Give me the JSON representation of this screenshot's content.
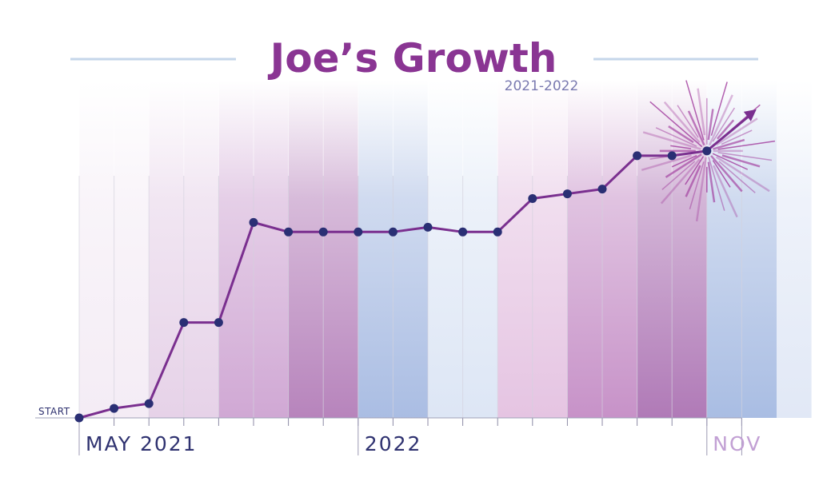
{
  "chart_data": {
    "type": "line",
    "title": "Joe’s Growth",
    "subtitle": "2021-2022",
    "start_label": "START",
    "x_labels": [
      {
        "text": "MAY 2021",
        "month_index": 0
      },
      {
        "text": "2022",
        "month_index": 8
      },
      {
        "text": "NOV",
        "month_index": 18
      }
    ],
    "x": [
      0,
      1,
      2,
      3,
      4,
      5,
      6,
      7,
      8,
      9,
      10,
      11,
      12,
      13,
      14,
      15,
      16,
      17,
      18
    ],
    "values": [
      0,
      2,
      3,
      20,
      20,
      41,
      39,
      39,
      39,
      39,
      40,
      39,
      39,
      46,
      47,
      48,
      55,
      55,
      56
    ],
    "ylim": [
      0,
      60
    ],
    "xlim": [
      0,
      19
    ],
    "trend_arrow": true,
    "burst_highlight": true,
    "band_colors": [
      "#f4ecf5",
      "#e6d2e8",
      "#d0a8d4",
      "#b784bc",
      "#aabde3",
      "#dde6f5",
      "#e5c4e2",
      "#c792c8",
      "#b07ab7",
      "#a9bde3",
      "#e1e8f6"
    ],
    "colors": {
      "line": "#7a2f8f",
      "marker": "#2a2f74",
      "title": "#8a3593",
      "subtitle": "#7a7ab0",
      "axis_label": "#2f3270",
      "axis_label_end": "#c2a0d4",
      "header_rule": "#c5d6ea",
      "burst": "#a03a9c"
    }
  }
}
